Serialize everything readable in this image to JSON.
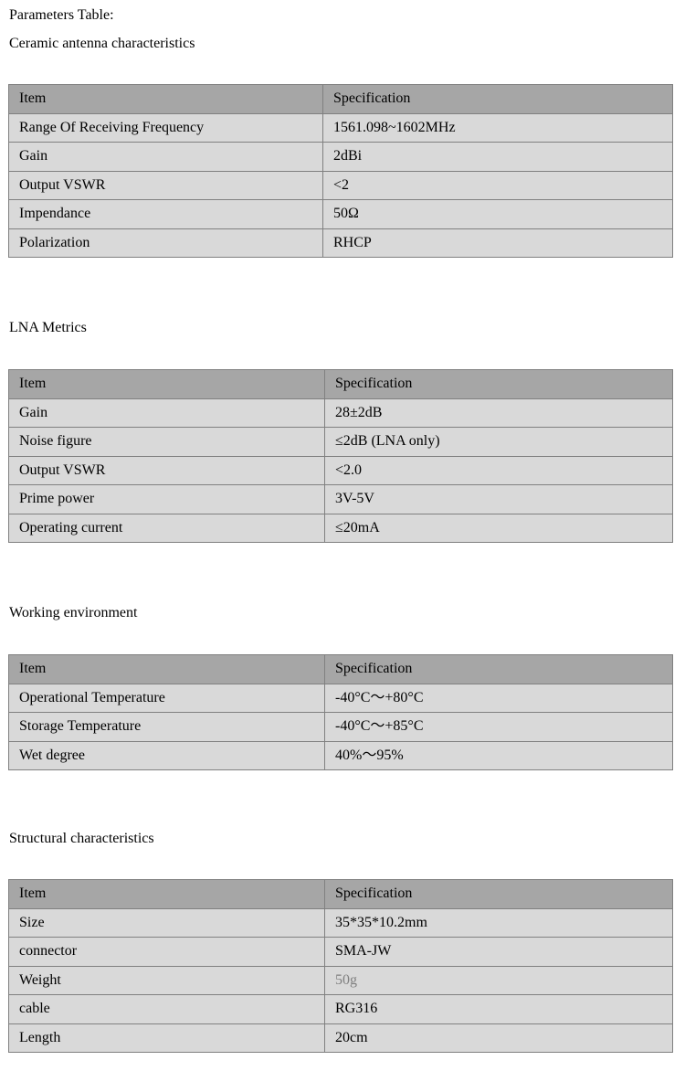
{
  "page_title": "Parameters Table:",
  "sections": [
    {
      "title": "Ceramic antenna characteristics",
      "header": [
        "Item",
        "Specification"
      ],
      "rows": [
        [
          "Range Of Receiving Frequency",
          "1561.098~1602MHz"
        ],
        [
          "Gain",
          "2dBi"
        ],
        [
          "Output VSWR",
          "<2"
        ],
        [
          "Impendance",
          "50Ω"
        ],
        [
          "Polarization",
          "RHCP"
        ]
      ]
    },
    {
      "title": "LNA Metrics",
      "header": [
        "Item",
        "Specification"
      ],
      "rows": [
        [
          "Gain",
          "28±2dB"
        ],
        [
          "Noise figure",
          "≤2dB (LNA only)"
        ],
        [
          "Output VSWR",
          "<2.0"
        ],
        [
          "Prime power",
          "3V-5V"
        ],
        [
          "Operating current",
          "≤20mA"
        ]
      ]
    },
    {
      "title": "Working environment",
      "header": [
        "Item",
        "Specification"
      ],
      "rows": [
        [
          "Operational Temperature",
          "-40°C～+80°C"
        ],
        [
          "Storage Temperature",
          "-40°C～+85°C"
        ],
        [
          "Wet degree",
          "40%～95%"
        ]
      ]
    },
    {
      "title": "Structural characteristics",
      "header": [
        "Item",
        "Specification"
      ],
      "rows": [
        [
          "Size",
          "35*35*10.2mm"
        ],
        [
          "connector",
          "SMA-JW"
        ],
        [
          "Weight",
          "50g"
        ],
        [
          "cable",
          "RG316"
        ],
        [
          "Length",
          "20cm"
        ]
      ]
    }
  ],
  "colors": {
    "header_bg": "#a6a6a6",
    "cell_bg": "#d9d9d9",
    "border": "#808080",
    "muted_text": "#7f7f7f"
  }
}
